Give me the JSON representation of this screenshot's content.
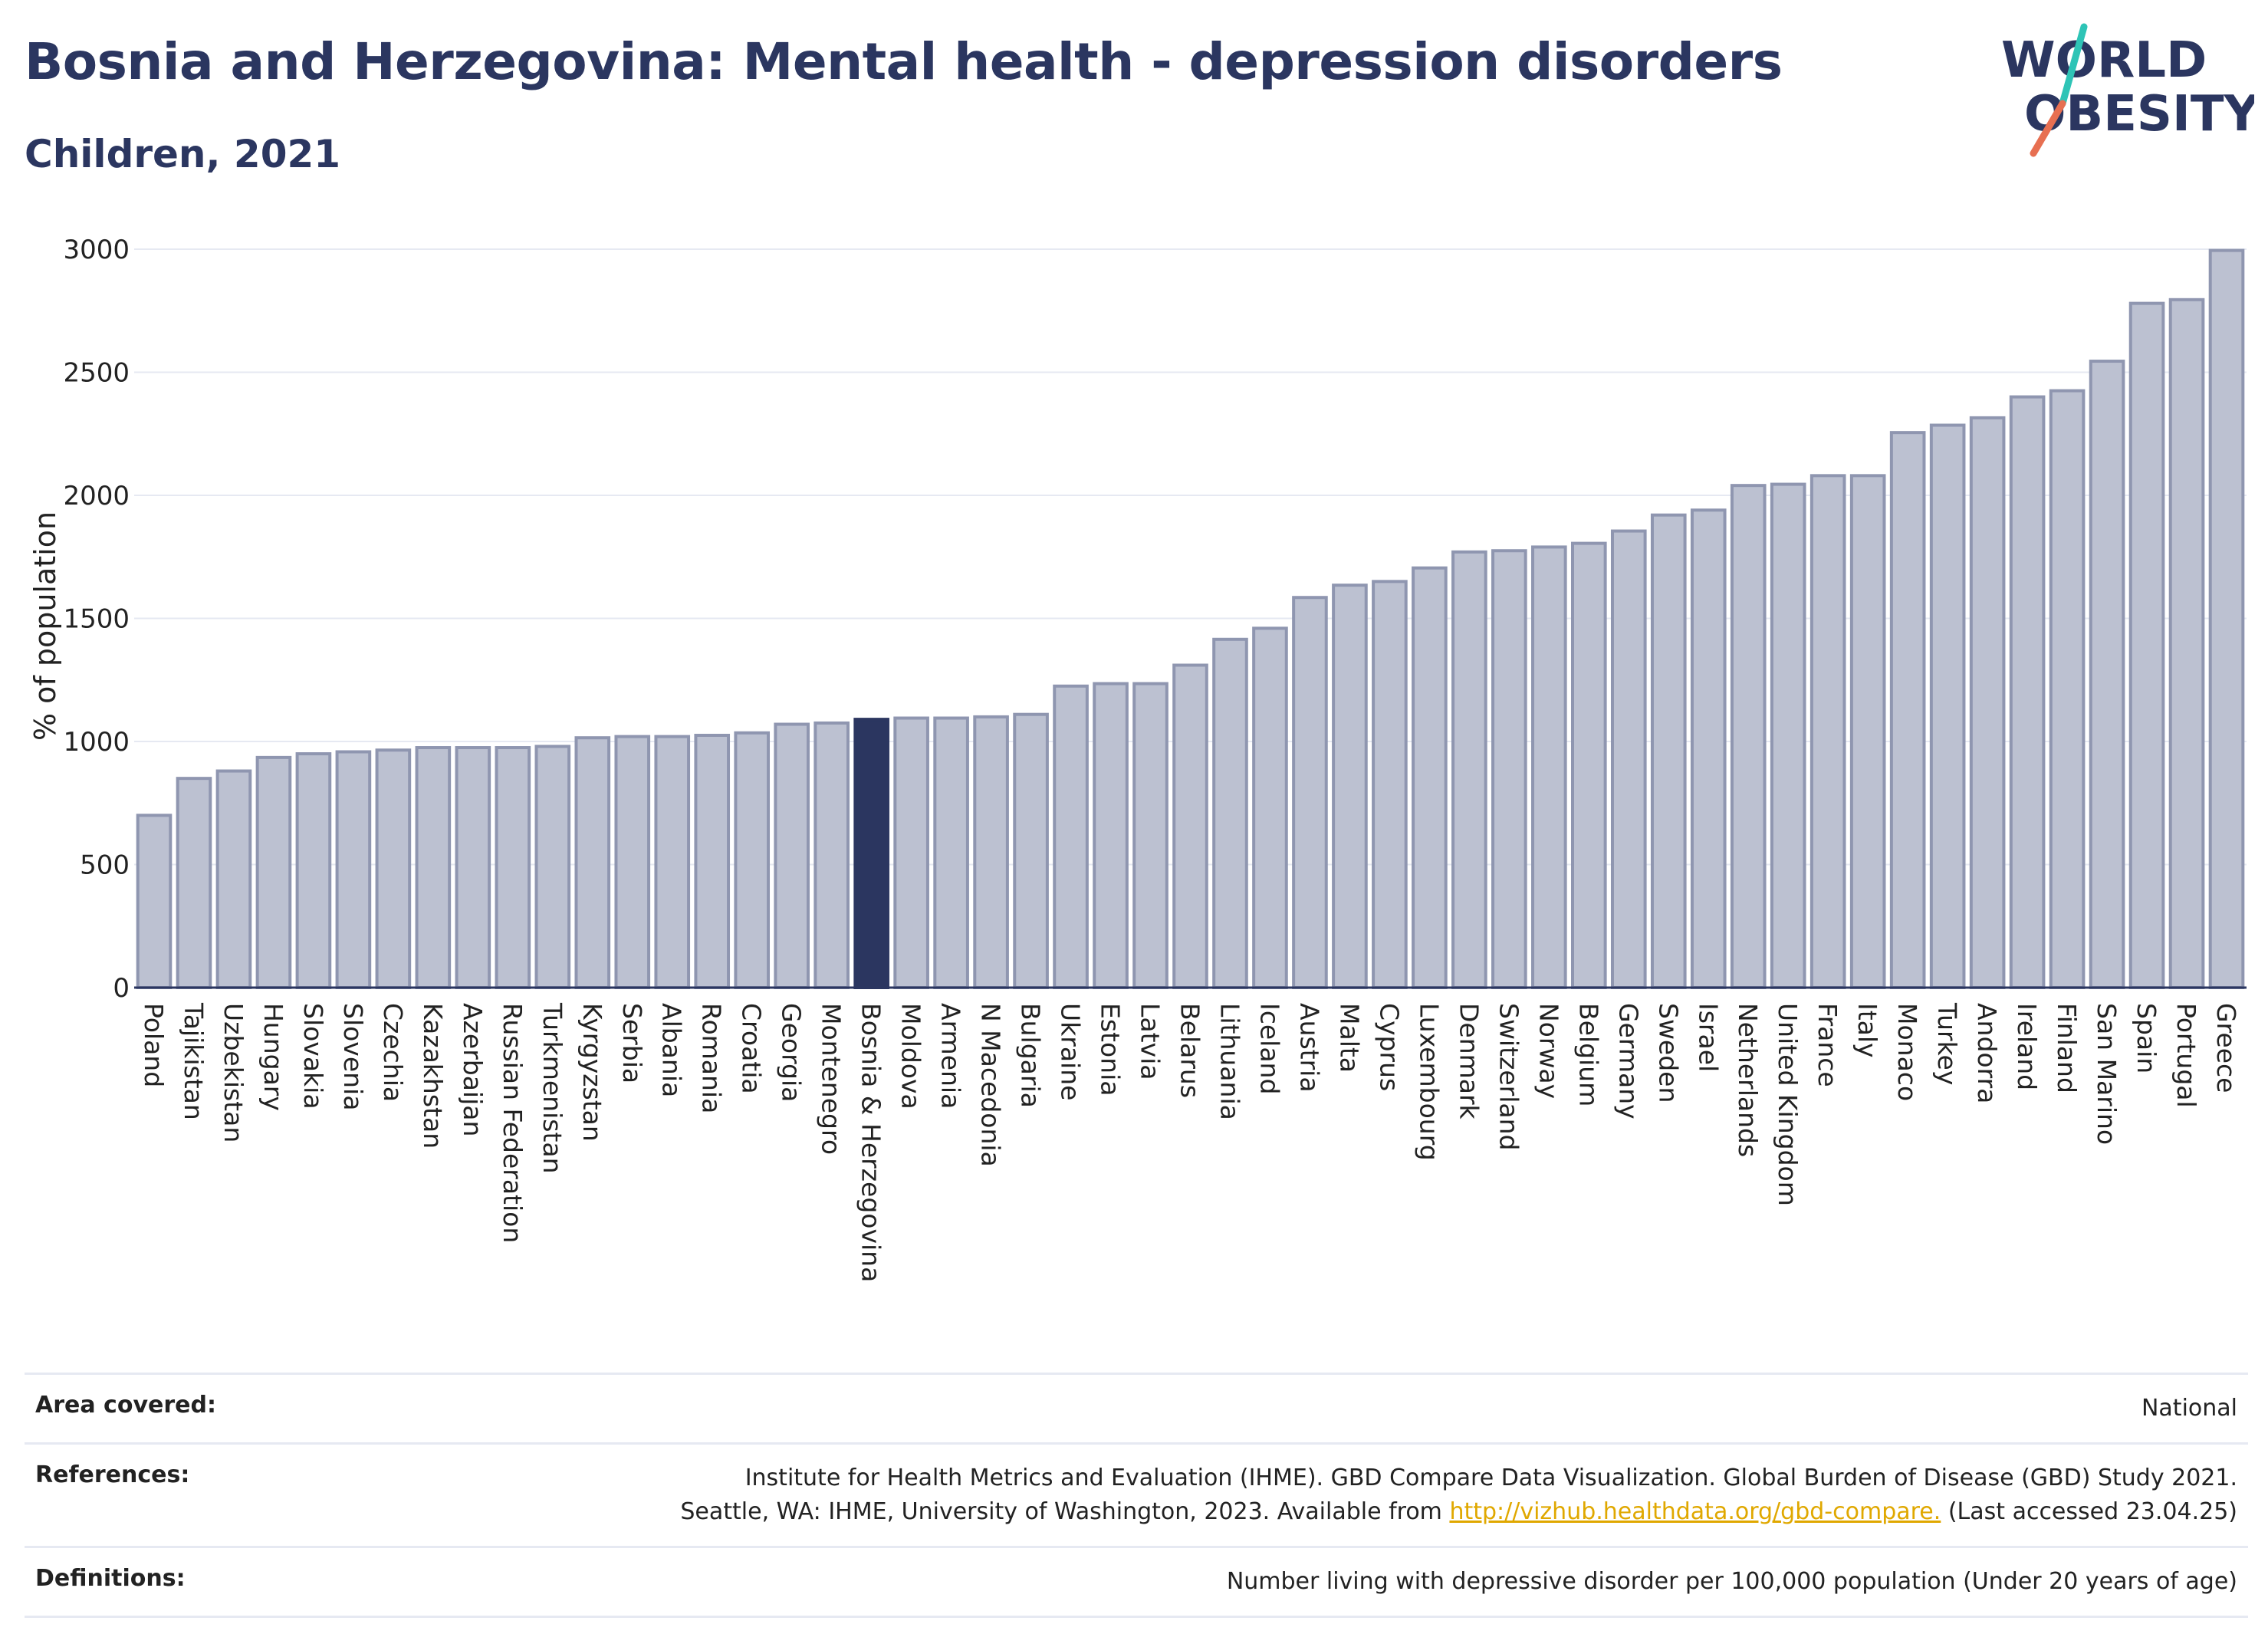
{
  "title": "Bosnia and Herzegovina: Mental health - depression disorders",
  "subtitle": "Children, 2021",
  "logo": {
    "line1": "WORLD",
    "line2": "OBESITY"
  },
  "colors": {
    "title": "#2b3660",
    "bar": "#bcc1d1",
    "bar_stroke": "#8f96b0",
    "highlight": "#2b3660",
    "grid": "#e6e9f2",
    "link": "#e0a800",
    "logo_teal": "#2ec4b6",
    "logo_coral": "#e76f51"
  },
  "chart_data": {
    "type": "bar",
    "ylabel": "% of population",
    "ylim": [
      0,
      3000
    ],
    "yticks": [
      0,
      500,
      1000,
      1500,
      2000,
      2500,
      3000
    ],
    "grid": true,
    "highlight": "Bosnia & Herzegovina",
    "categories": [
      "Poland",
      "Tajikistan",
      "Uzbekistan",
      "Hungary",
      "Slovakia",
      "Slovenia",
      "Czechia",
      "Kazakhstan",
      "Azerbaijan",
      "Russian Federation",
      "Turkmenistan",
      "Kyrgyzstan",
      "Serbia",
      "Albania",
      "Romania",
      "Croatia",
      "Georgia",
      "Montenegro",
      "Bosnia & Herzegovina",
      "Moldova",
      "Armenia",
      "N Macedonia",
      "Bulgaria",
      "Ukraine",
      "Estonia",
      "Latvia",
      "Belarus",
      "Lithuania",
      "Iceland",
      "Austria",
      "Malta",
      "Cyprus",
      "Luxembourg",
      "Denmark",
      "Switzerland",
      "Norway",
      "Belgium",
      "Germany",
      "Sweden",
      "Israel",
      "Netherlands",
      "United Kingdom",
      "France",
      "Italy",
      "Monaco",
      "Turkey",
      "Andorra",
      "Ireland",
      "Finland",
      "San Marino",
      "Spain",
      "Portugal",
      "Greece"
    ],
    "values": [
      700,
      850,
      880,
      935,
      950,
      958,
      965,
      975,
      975,
      975,
      980,
      1015,
      1020,
      1020,
      1025,
      1035,
      1070,
      1075,
      1090,
      1095,
      1095,
      1100,
      1110,
      1225,
      1235,
      1235,
      1310,
      1415,
      1460,
      1585,
      1635,
      1650,
      1705,
      1770,
      1775,
      1790,
      1805,
      1855,
      1920,
      1940,
      2040,
      2045,
      2080,
      2080,
      2255,
      2285,
      2315,
      2400,
      2425,
      2545,
      2780,
      2795,
      2995
    ]
  },
  "footer": {
    "area_label": "Area covered:",
    "area_value": "National",
    "references_label": "References:",
    "references_line1": "Institute for Health Metrics and Evaluation (IHME). GBD Compare Data Visualization. Global Burden of Disease (GBD) Study 2021.",
    "references_line2_pre": "Seattle, WA: IHME, University of Washington, 2023. Available from ",
    "references_link": "http://vizhub.healthdata.org/gbd-compare.",
    "references_line2_post": " (Last accessed 23.04.25)",
    "definitions_label": "Definitions:",
    "definitions_value": "Number living with depressive disorder per 100,000 population (Under 20 years of age)"
  }
}
